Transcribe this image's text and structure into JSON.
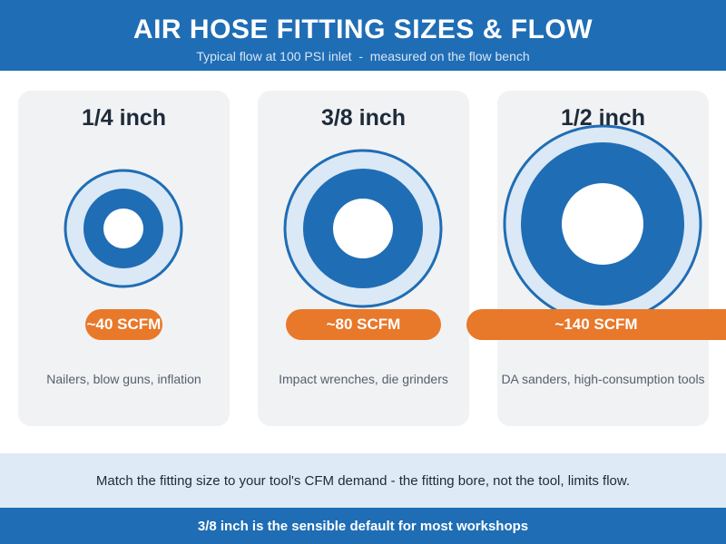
{
  "header": {
    "title": "AIR HOSE FITTING SIZES & FLOW",
    "subtitle": "Typical flow at 100 PSI inlet  -  measured on the flow bench"
  },
  "colors": {
    "brand_blue": "#1f6db5",
    "ring_light": "#dbe8f5",
    "accent_orange": "#e8782a"
  },
  "fittings": [
    {
      "size": "1/4 inch",
      "flow": "~40 SCFM",
      "flow_scfm": 40,
      "use": "Nailers, blow guns, inflation"
    },
    {
      "size": "3/8 inch",
      "flow": "~80 SCFM",
      "flow_scfm": 80,
      "use": "Impact wrenches, die grinders"
    },
    {
      "size": "1/2 inch",
      "flow": "~140 SCFM",
      "flow_scfm": 140,
      "use": "DA sanders, high-consumption tools"
    }
  ],
  "tip": "Match the fitting size to your tool's CFM demand - the fitting bore, not the tool, limits flow.",
  "footer": "3/8 inch is the sensible default for most workshops"
}
